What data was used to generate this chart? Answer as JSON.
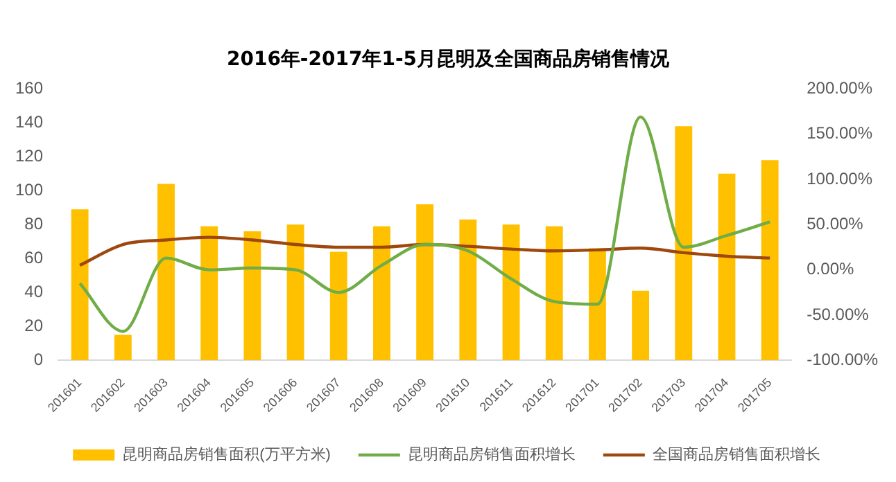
{
  "chart_data": {
    "type": "bar",
    "title": "2016年-2017年1-5月昆明及全国商品房销售情况",
    "categories": [
      "201601",
      "201602",
      "201603",
      "201604",
      "201605",
      "201606",
      "201607",
      "201608",
      "201609",
      "201610",
      "201611",
      "201612",
      "201701",
      "201702",
      "201703",
      "201704",
      "201705"
    ],
    "series": [
      {
        "name": "昆明商品房销售面积(万平方米)",
        "color": "#ffc000",
        "values": [
          89,
          15,
          104,
          79,
          76,
          80,
          64,
          79,
          92,
          83,
          80,
          79,
          66,
          41,
          138,
          110,
          118
        ]
      },
      {
        "name": "昆明商品房销售面积增长",
        "type": "line",
        "axis": "y2",
        "color": "#70ad47",
        "values": [
          -15,
          -68,
          13,
          0,
          2,
          0,
          -25,
          5,
          28,
          21,
          -10,
          -35,
          -38,
          169,
          25,
          38,
          53
        ]
      },
      {
        "name": "全国商品房销售面积增长",
        "type": "line",
        "axis": "y2",
        "color": "#9e480e",
        "values": [
          5,
          28,
          33,
          36,
          33,
          28,
          25,
          25,
          28,
          26,
          23,
          21,
          22,
          24,
          19,
          15,
          13
        ]
      }
    ],
    "ylim": [
      0,
      160
    ],
    "yticks": [
      0,
      20,
      40,
      60,
      80,
      100,
      120,
      140,
      160
    ],
    "y2lim": [
      -100,
      200
    ],
    "y2ticks": [
      {
        "value": -100,
        "label": "-100.00%"
      },
      {
        "value": -50,
        "label": "-50.00%"
      },
      {
        "value": 0,
        "label": "0.00%"
      },
      {
        "value": 50,
        "label": "50.00%"
      },
      {
        "value": 100,
        "label": "100.00%"
      },
      {
        "value": 150,
        "label": "150.00%"
      },
      {
        "value": 200,
        "label": "200.00%"
      }
    ],
    "grid": false,
    "legend": "bottom",
    "marker": "none",
    "line_style": "solid"
  }
}
